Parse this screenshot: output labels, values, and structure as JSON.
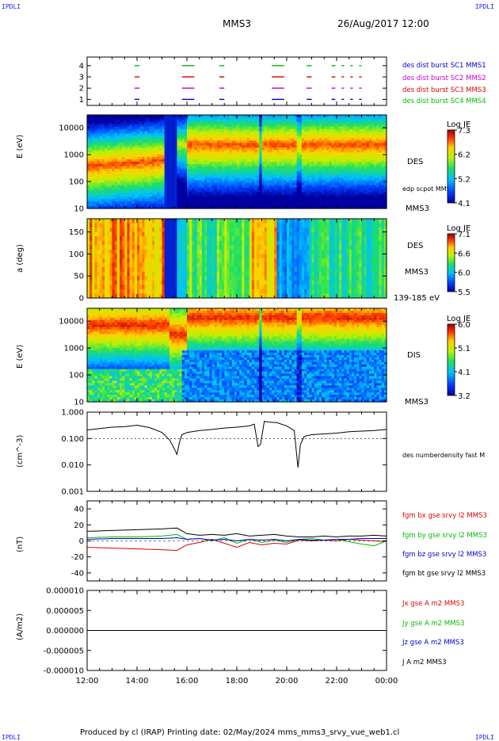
{
  "header": {
    "logo_left": "IPDLI",
    "logo_right": "IPDLI",
    "mission": "MMS3",
    "datetime": "26/Aug/2017 12:00"
  },
  "footer": {
    "text": "Produced by cl (IRAP)   Printing date: 02/May/2024   mms_mms3_srvy_vue_web1.cl",
    "logo_left": "IPDLI",
    "logo_right": "IPDLI"
  },
  "x_axis": {
    "ticks": [
      "12:00",
      "14:00",
      "16:00",
      "18:00",
      "20:00",
      "22:00",
      "00:00"
    ],
    "range_hours": [
      12,
      24
    ]
  },
  "chart_data": [
    {
      "type": "scatter",
      "panel": "burst-availability",
      "yticks": [
        "1",
        "2",
        "3",
        "4"
      ],
      "legend": [
        {
          "label": "des dist burst SC1 MMS1",
          "color": "#0000cc"
        },
        {
          "label": "des dist burst SC2 MMS2",
          "color": "#cc00cc"
        },
        {
          "label": "des dist burst SC3 MMS3",
          "color": "#dd0000"
        },
        {
          "label": "des dist burst SC4 MMS4",
          "color": "#00bb00"
        }
      ],
      "intervals_hours": [
        [
          13.9,
          14.1
        ],
        [
          15.8,
          16.3
        ],
        [
          17.3,
          17.5
        ],
        [
          19.4,
          19.9
        ],
        [
          20.8,
          21.0
        ],
        [
          21.8,
          21.95
        ],
        [
          22.2,
          22.3
        ],
        [
          22.55,
          22.65
        ],
        [
          22.9,
          23.0
        ]
      ]
    },
    {
      "type": "heatmap",
      "panel": "des-energy-spectrogram",
      "ylabel": "E (eV)",
      "yscale": "log",
      "ylim": [
        10,
        30000
      ],
      "yticks": [
        "10",
        "100",
        "1000",
        "10000"
      ],
      "instrument": "DES",
      "spacecraft": "MMS3",
      "overlay_label": "edp scpot MMS3",
      "colorbar": {
        "title": "Log JE",
        "ticks": [
          "7.3",
          "6.2",
          "5.2",
          "4.1"
        ],
        "range": [
          4.1,
          7.3
        ]
      }
    },
    {
      "type": "heatmap",
      "panel": "des-pitch-angle",
      "ylabel": "a (deg)",
      "ylim": [
        0,
        180
      ],
      "yticks": [
        "0",
        "50",
        "100",
        "150"
      ],
      "instrument": "DES",
      "spacecraft": "MMS3",
      "energy_range": "139-185 eV",
      "colorbar": {
        "title": "Log JE",
        "ticks": [
          "7.1",
          "6.6",
          "6.0",
          "5.5"
        ],
        "range": [
          5.5,
          7.1
        ]
      }
    },
    {
      "type": "heatmap",
      "panel": "dis-energy-spectrogram",
      "ylabel": "E (eV)",
      "yscale": "log",
      "ylim": [
        10,
        30000
      ],
      "yticks": [
        "10",
        "100",
        "1000",
        "10000"
      ],
      "instrument": "DIS",
      "spacecraft": "MMS3",
      "colorbar": {
        "title": "Log JE",
        "ticks": [
          "6.0",
          "5.1",
          "4.1",
          "3.2"
        ],
        "range": [
          3.2,
          6.0
        ]
      }
    },
    {
      "type": "line",
      "panel": "density",
      "ylabel": "(cm^-3)",
      "yscale": "log",
      "ylim": [
        0.001,
        1.0
      ],
      "yticks": [
        "0.001",
        "0.010",
        "0.100",
        "1.000"
      ],
      "series": [
        {
          "name": "des numberdensity fast M",
          "color": "#000000",
          "x_hours": [
            12.0,
            12.5,
            13.0,
            13.5,
            14.0,
            14.5,
            15.0,
            15.3,
            15.5,
            15.6,
            15.7,
            15.8,
            16.0,
            16.5,
            17.0,
            17.5,
            18.0,
            18.5,
            18.7,
            18.85,
            18.95,
            19.1,
            19.3,
            19.6,
            20.0,
            20.3,
            20.45,
            20.55,
            20.7,
            21.0,
            21.5,
            22.0,
            22.5,
            23.0,
            23.5,
            24.0
          ],
          "values": [
            0.21,
            0.24,
            0.27,
            0.28,
            0.32,
            0.26,
            0.17,
            0.09,
            0.04,
            0.025,
            0.07,
            0.14,
            0.17,
            0.2,
            0.22,
            0.25,
            0.27,
            0.3,
            0.35,
            0.05,
            0.06,
            0.45,
            0.42,
            0.4,
            0.3,
            0.2,
            0.008,
            0.06,
            0.12,
            0.14,
            0.15,
            0.16,
            0.18,
            0.19,
            0.2,
            0.22
          ]
        }
      ]
    },
    {
      "type": "line",
      "panel": "magnetic-field",
      "ylabel": "(nT)",
      "ylim": [
        -50,
        50
      ],
      "yticks": [
        "40",
        "20",
        "0",
        "-20",
        "-40"
      ],
      "x_hours": [
        12.0,
        13.0,
        14.0,
        15.0,
        15.6,
        16.0,
        16.5,
        17.0,
        17.5,
        18.0,
        18.5,
        19.0,
        19.5,
        20.0,
        20.5,
        21.0,
        21.5,
        22.0,
        22.5,
        23.0,
        23.5,
        24.0
      ],
      "series": [
        {
          "name": "fgm bx gse srvy l2 MMS3",
          "color": "#dd0000",
          "values": [
            -8,
            -9,
            -10,
            -11,
            -12,
            -5,
            -2,
            2,
            -3,
            -8,
            -2,
            -5,
            -3,
            -4,
            1,
            0,
            1,
            0,
            2,
            1,
            0,
            -1
          ]
        },
        {
          "name": "fgm by gse srvy l2 MMS3",
          "color": "#00bb00",
          "values": [
            4,
            5,
            5,
            6,
            8,
            2,
            3,
            0,
            4,
            -3,
            2,
            -2,
            1,
            -2,
            2,
            3,
            1,
            2,
            -1,
            -4,
            -6,
            0
          ]
        },
        {
          "name": "fgm bz gse srvy l2 MMS3",
          "color": "#0000cc",
          "values": [
            2,
            3,
            3,
            3,
            4,
            2,
            3,
            1,
            2,
            0,
            2,
            1,
            2,
            0,
            2,
            1,
            1,
            2,
            2,
            3,
            3,
            3
          ]
        },
        {
          "name": "fgm bt gse srvy l2 MMS3",
          "color": "#000000",
          "values": [
            12,
            13,
            14,
            15,
            16,
            9,
            7,
            8,
            7,
            9,
            6,
            7,
            8,
            6,
            5,
            5,
            6,
            5,
            6,
            6,
            7,
            6
          ]
        }
      ]
    },
    {
      "type": "line",
      "panel": "current-density",
      "ylabel": "(A/m2)",
      "ylim": [
        -1e-05,
        1e-05
      ],
      "yticks": [
        "0.000010",
        "0.000005",
        "0.000000",
        "-0.000005",
        "-0.000010"
      ],
      "series": [
        {
          "name": "Jx gse A m2 MMS3",
          "color": "#dd0000"
        },
        {
          "name": "Jy gse A m2 MMS3",
          "color": "#00bb00"
        },
        {
          "name": "Jz gse A m2 MMS3",
          "color": "#0000cc"
        },
        {
          "name": "J A m2 MMS3",
          "color": "#000000"
        }
      ]
    }
  ]
}
